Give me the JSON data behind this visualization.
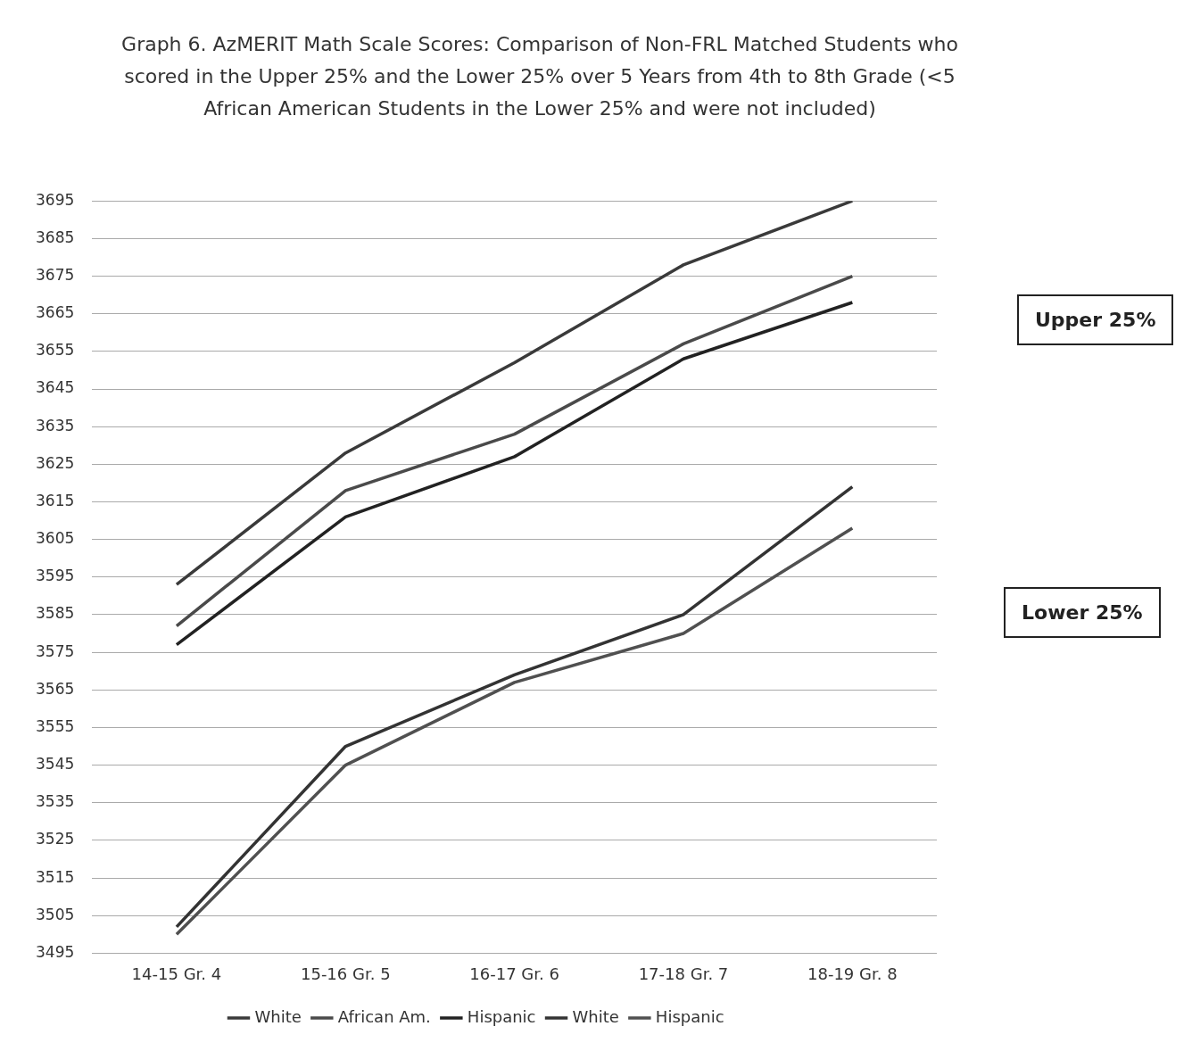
{
  "chart_data": {
    "type": "line",
    "title": "Graph 6. AzMERIT Math Scale Scores:  Comparison of Non-FRL Matched Students who scored in the Upper 25% and the Lower 25% over 5 Years from 4th to 8th Grade (<5 African American Students in the Lower 25% and were not included)",
    "categories": [
      "14-15 Gr. 4",
      "15-16 Gr. 5",
      "16-17 Gr. 6",
      "17-18 Gr. 7",
      "18-19 Gr. 8"
    ],
    "series": [
      {
        "name": "White",
        "color": "#3a3a3a",
        "values": [
          3593,
          3628,
          3652,
          3678,
          3695
        ]
      },
      {
        "name": "African Am.",
        "color": "#4a4a4a",
        "values": [
          3582,
          3618,
          3633,
          3657,
          3675
        ]
      },
      {
        "name": "Hispanic",
        "color": "#222222",
        "values": [
          3577,
          3611,
          3627,
          3653,
          3668
        ]
      },
      {
        "name": "White",
        "color": "#333333",
        "values": [
          3502,
          3550,
          3569,
          3585,
          3619
        ]
      },
      {
        "name": "Hispanic",
        "color": "#505050",
        "values": [
          3500,
          3545,
          3567,
          3580,
          3608
        ]
      }
    ],
    "ylim": [
      3495,
      3695
    ],
    "yticks": [
      3495,
      3505,
      3515,
      3525,
      3535,
      3545,
      3555,
      3565,
      3575,
      3585,
      3595,
      3605,
      3615,
      3625,
      3635,
      3645,
      3655,
      3665,
      3675,
      3685,
      3695
    ],
    "grid": "y",
    "legend": "bottom",
    "marker": "none",
    "line_style": "solid",
    "annotations": [
      "Upper 25%",
      "Lower 25%"
    ]
  }
}
